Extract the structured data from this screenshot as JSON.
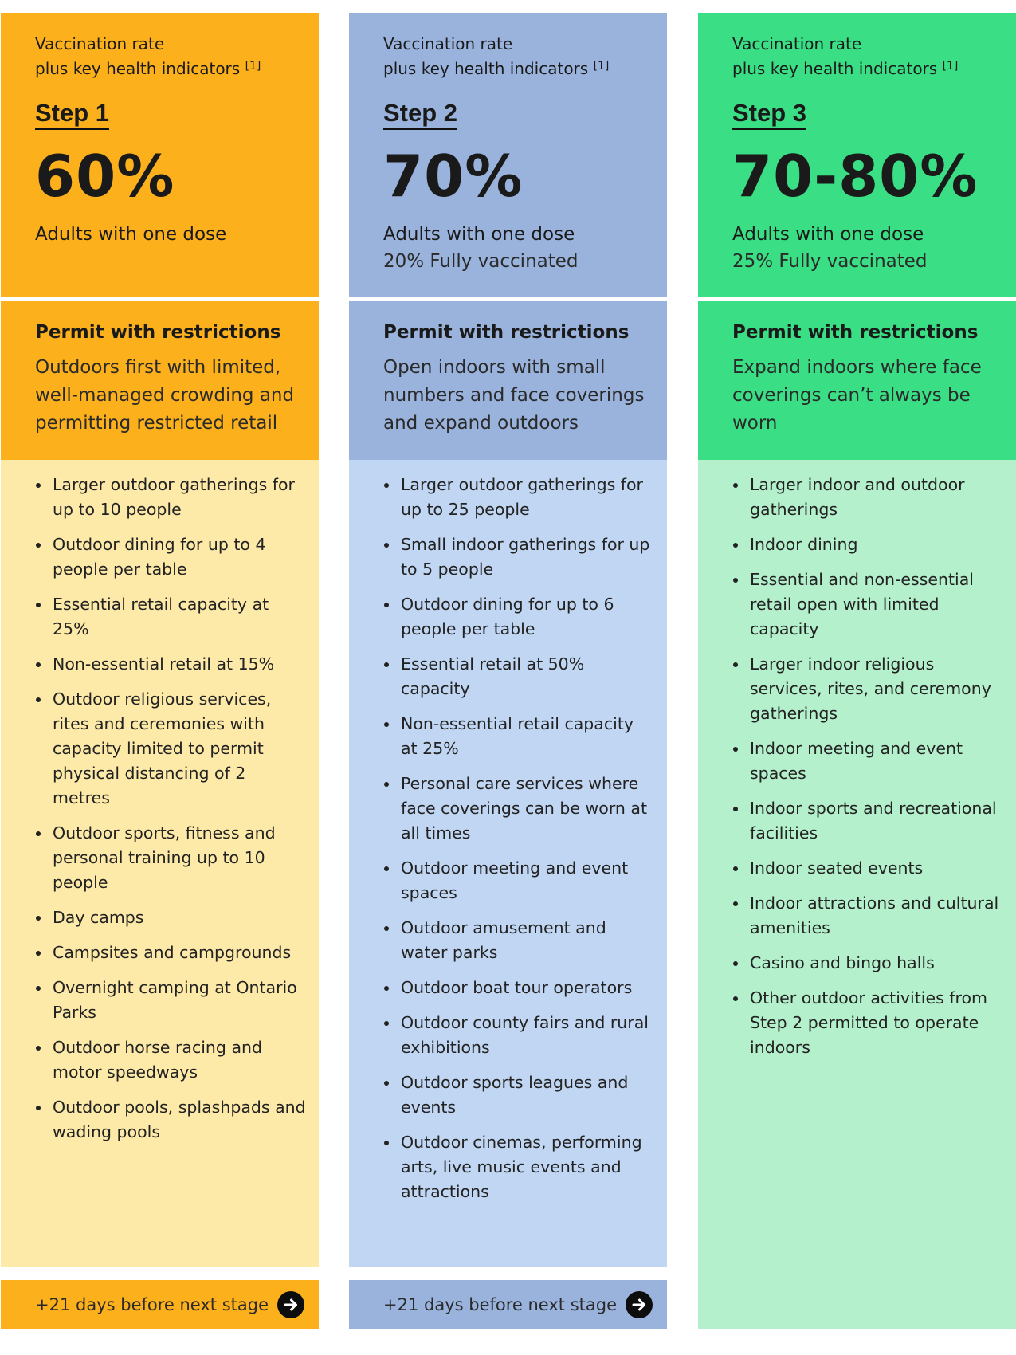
{
  "colors": {
    "step1_dark": "#fcb01c",
    "step1_light": "#feeaa8",
    "step2_dark": "#9ab3dd",
    "step2_light": "#c1d6f2",
    "step3_dark": "#3ade84",
    "step3_light": "#b4f0cc"
  },
  "steps": [
    {
      "vacc_line1": "Vaccination rate",
      "vacc_line2": "plus key health indicators",
      "footnote": "[1]",
      "step_label": "Step 1",
      "percent": "60%",
      "dose": "Adults with one dose",
      "fully": "",
      "permit_title": "Permit with restrictions",
      "permit_desc": "Outdoors first with limited, well-managed crowding and permitting restricted retail",
      "items": [
        "Larger outdoor gatherings for up to 10 people",
        "Outdoor dining for up to 4 people per table",
        "Essential retail capacity at 25%",
        "Non-essential retail at 15%",
        "Outdoor religious services, rites and ceremonies with capacity limited to permit physical distancing of 2 metres",
        "Outdoor sports, fitness and personal training up to 10 people",
        "Day camps",
        "Campsites and campgrounds",
        "Overnight camping at Ontario Parks",
        "Outdoor horse racing and motor speedways",
        "Outdoor pools, splashpads and wading pools"
      ],
      "footer": "+21 days before next stage"
    },
    {
      "vacc_line1": "Vaccination rate",
      "vacc_line2": "plus key health indicators",
      "footnote": "[1]",
      "step_label": "Step 2",
      "percent": "70%",
      "dose": "Adults with one dose",
      "fully": "20% Fully vaccinated",
      "permit_title": "Permit with restrictions",
      "permit_desc": "Open indoors with small numbers and face coverings and expand outdoors",
      "items": [
        "Larger outdoor gatherings for up to 25 people",
        "Small indoor gatherings for up to 5 people",
        "Outdoor dining for up to 6 people per table",
        "Essential retail at 50% capacity",
        "Non-essential retail capacity at 25%",
        "Personal care services where face coverings can be worn at all times",
        "Outdoor meeting and event spaces",
        "Outdoor amusement and water parks",
        "Outdoor boat tour operators",
        "Outdoor county fairs and rural exhibitions",
        "Outdoor sports leagues and events",
        "Outdoor cinemas, performing arts, live music events and attractions"
      ],
      "footer": "+21 days before next stage"
    },
    {
      "vacc_line1": "Vaccination rate",
      "vacc_line2": "plus key health indicators",
      "footnote": "[1]",
      "step_label": "Step 3",
      "percent": "70-80%",
      "dose": "Adults with one dose",
      "fully": "25% Fully vaccinated",
      "permit_title": "Permit with restrictions",
      "permit_desc": "Expand indoors where face coverings can’t always be worn",
      "items": [
        "Larger indoor and outdoor gatherings",
        "Indoor dining",
        "Essential and non-essential retail open with limited capacity",
        "Larger indoor religious services, rites, and ceremony gatherings",
        "Indoor meeting and event spaces",
        "Indoor sports and recreational facilities",
        "Indoor seated events",
        "Indoor attractions and cultural amenities",
        "Casino and bingo halls",
        "Other outdoor activities from Step 2 permitted to operate indoors"
      ],
      "footer": ""
    }
  ]
}
